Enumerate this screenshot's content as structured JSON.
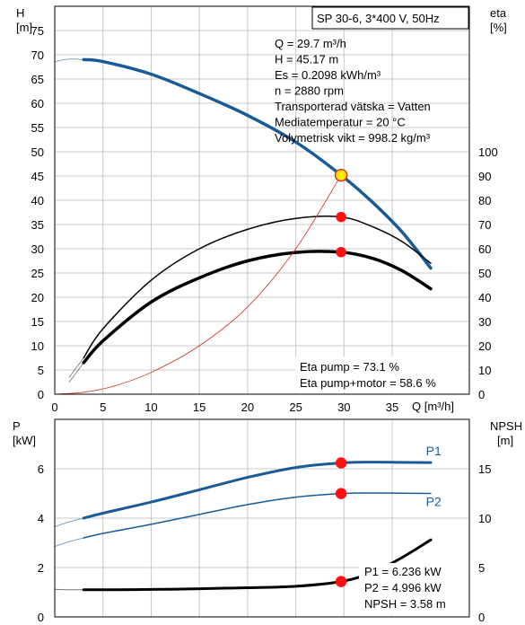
{
  "chart_data": [
    {
      "type": "line",
      "title": "SP 30-6, 3*400 V, 50Hz",
      "xlabel": "Q [m³/h]",
      "xlim": [
        0,
        43
      ],
      "xticks": [
        0,
        5,
        10,
        15,
        20,
        25,
        30,
        35
      ],
      "y_left": {
        "label_top": "H",
        "label_unit": "[m]",
        "ylim": [
          0,
          80
        ],
        "ticks": [
          0,
          5,
          10,
          15,
          20,
          25,
          30,
          35,
          40,
          45,
          50,
          55,
          60,
          65,
          70,
          75
        ]
      },
      "y_right": {
        "label_top": "eta",
        "label_unit": "[%]",
        "ylim": [
          0,
          160
        ],
        "ticks": [
          0,
          10,
          20,
          30,
          40,
          50,
          60,
          70,
          80,
          90,
          100
        ]
      },
      "grid": true,
      "info_lines": [
        "Q = 29.7 m³/h",
        "H = 45.17 m",
        "Es = 0.2098 kWh/m³",
        "n = 2880 rpm",
        "Transporterad vätska = Vatten",
        "Mediatemperatur = 20 °C",
        "Volymetrisk vikt = 998.2 kg/m³"
      ],
      "eff_lines": [
        "Eta pump = 73.1 %",
        "Eta pump+motor = 58.6 %"
      ],
      "series": [
        {
          "axis": "left",
          "color": "#1a5a96",
          "width": 3.5,
          "x": [
            3,
            5,
            10,
            15,
            20,
            25,
            29.7,
            33,
            36,
            39
          ],
          "y": [
            69,
            68.6,
            66,
            62,
            57.5,
            52,
            45.17,
            39.5,
            33.5,
            26
          ]
        },
        {
          "axis": "left",
          "color": "#1a5a96",
          "width": 1,
          "faint": true,
          "x": [
            0,
            1.5,
            3
          ],
          "y": [
            68.6,
            69.1,
            69
          ]
        },
        {
          "axis": "right",
          "color": "#000000",
          "width": 1.5,
          "x": [
            3,
            5,
            10,
            15,
            20,
            25,
            29.7,
            33,
            36,
            39
          ],
          "y": [
            15,
            27,
            47,
            60,
            68,
            72.5,
            73.1,
            69,
            63,
            54
          ]
        },
        {
          "axis": "right",
          "color": "#000000",
          "width": 3.5,
          "x": [
            3,
            5,
            10,
            15,
            20,
            25,
            29.7,
            33,
            36,
            39
          ],
          "y": [
            13,
            22,
            38,
            48,
            55,
            58.5,
            58.6,
            56,
            51,
            43.5
          ]
        },
        {
          "axis": "right",
          "color": "#000000",
          "width": 0.8,
          "faint": true,
          "x": [
            1.5,
            3
          ],
          "y": [
            7,
            15
          ]
        },
        {
          "axis": "right",
          "color": "#000000",
          "width": 0.8,
          "faint": true,
          "x": [
            1.5,
            3
          ],
          "y": [
            5,
            13
          ]
        },
        {
          "axis": "left",
          "color": "#d03020",
          "width": 0.8,
          "x": [
            0,
            3,
            6,
            10,
            15,
            20,
            25,
            29.7
          ],
          "y": [
            0,
            0.4,
            1.6,
            4.5,
            10,
            18,
            30,
            45.17
          ]
        }
      ],
      "markers": [
        {
          "axis": "left",
          "x": 29.7,
          "y": 45.17,
          "fill": "#ffee00",
          "stroke": "#e03020",
          "r": 6.5
        },
        {
          "axis": "right",
          "x": 29.7,
          "y": 73.1,
          "fill": "#ff1010",
          "stroke": "#ff1010",
          "r": 5
        },
        {
          "axis": "right",
          "x": 29.7,
          "y": 58.6,
          "fill": "#ff1010",
          "stroke": "#ff1010",
          "r": 5
        }
      ]
    },
    {
      "type": "line",
      "xlim": [
        0,
        43
      ],
      "xticks": [
        0,
        5,
        10,
        15,
        20,
        25,
        30,
        35
      ],
      "y_left": {
        "label_top": "P",
        "label_unit": "[kW]",
        "ylim": [
          0,
          8
        ],
        "ticks": [
          0,
          2,
          4,
          6
        ]
      },
      "y_right": {
        "label_top": "NPSH",
        "label_unit": "[m]",
        "ylim": [
          0,
          20
        ],
        "ticks": [
          0,
          5,
          10,
          15
        ]
      },
      "grid": true,
      "value_lines": [
        "P1 = 6.236 kW",
        "P2 = 4.996 kW",
        "NPSH = 3.58 m"
      ],
      "series_labels": [
        {
          "text": "P1",
          "axis": "left",
          "x": 38.5,
          "y": 6.55
        },
        {
          "text": "P2",
          "axis": "left",
          "x": 38.5,
          "y": 4.5
        }
      ],
      "series": [
        {
          "name": "P1",
          "axis": "left",
          "color": "#1a5a96",
          "width": 3,
          "x": [
            3,
            5,
            10,
            15,
            20,
            25,
            29.7,
            33,
            36,
            39
          ],
          "y": [
            4.0,
            4.2,
            4.65,
            5.15,
            5.65,
            6.05,
            6.236,
            6.27,
            6.26,
            6.25
          ]
        },
        {
          "axis": "left",
          "color": "#1a5a96",
          "width": 1,
          "faint": true,
          "x": [
            0,
            1.5,
            3
          ],
          "y": [
            3.65,
            3.85,
            4.0
          ]
        },
        {
          "name": "P2",
          "axis": "left",
          "color": "#1a5a96",
          "width": 1.5,
          "x": [
            3,
            5,
            10,
            15,
            20,
            25,
            29.7,
            33,
            36,
            39
          ],
          "y": [
            3.2,
            3.38,
            3.75,
            4.15,
            4.55,
            4.85,
            4.996,
            5.02,
            5.01,
            5.0
          ]
        },
        {
          "axis": "left",
          "color": "#1a5a96",
          "width": 1,
          "faint": true,
          "x": [
            0,
            1.5,
            3
          ],
          "y": [
            2.85,
            3.05,
            3.2
          ]
        },
        {
          "name": "NPSH",
          "axis": "right",
          "color": "#000000",
          "width": 3,
          "x": [
            3,
            5,
            10,
            15,
            20,
            25,
            29.7,
            33,
            36,
            39
          ],
          "y": [
            2.75,
            2.75,
            2.78,
            2.85,
            2.95,
            3.1,
            3.58,
            4.5,
            6.0,
            7.8
          ]
        },
        {
          "axis": "right",
          "color": "#000000",
          "width": 1,
          "faint": true,
          "x": [
            0,
            1.5,
            3
          ],
          "y": [
            2.8,
            2.75,
            2.75
          ]
        }
      ],
      "markers": [
        {
          "axis": "left",
          "x": 29.7,
          "y": 6.236,
          "fill": "#ff1010",
          "stroke": "#ff1010",
          "r": 5.5
        },
        {
          "axis": "left",
          "x": 29.7,
          "y": 4.996,
          "fill": "#ff1010",
          "stroke": "#ff1010",
          "r": 5.5
        },
        {
          "axis": "right",
          "x": 29.7,
          "y": 3.58,
          "fill": "#ff1010",
          "stroke": "#ff1010",
          "r": 5.5
        }
      ]
    }
  ]
}
